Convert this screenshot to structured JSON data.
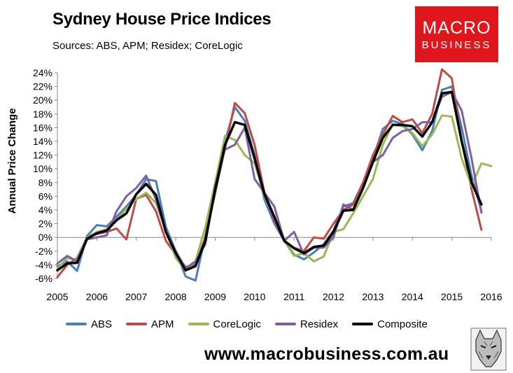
{
  "header": {
    "title": "Sydney House Price Indices",
    "subtitle": "Sources: ABS, APM; Residex; CoreLogic"
  },
  "logo": {
    "line1": "MACRO",
    "line2": "BUSINESS",
    "color": "#e0161d"
  },
  "footer": {
    "url": "www.macrobusiness.com.au"
  },
  "chart_data": {
    "type": "line",
    "title": "Sydney House Price Indices",
    "subtitle": "Sources: ABS, APM; Residex; CoreLogic",
    "xlabel": "",
    "ylabel": "Annual Price Change",
    "xlim": [
      2005,
      2016
    ],
    "ylim": [
      -6,
      24
    ],
    "x_ticks": [
      "2005",
      "2006",
      "2007",
      "2008",
      "2009",
      "2010",
      "2011",
      "2012",
      "2013",
      "2014",
      "2015",
      "2016"
    ],
    "y_ticks": [
      "-6%",
      "-4%",
      "-2%",
      "0%",
      "2%",
      "4%",
      "6%",
      "8%",
      "10%",
      "12%",
      "14%",
      "16%",
      "18%",
      "20%",
      "22%",
      "24%"
    ],
    "grid": false,
    "legend_position": "bottom",
    "series": [
      {
        "name": "ABS",
        "color": "#4a7ebb",
        "x": [
          2005.0,
          2005.25,
          2005.5,
          2005.75,
          2006.0,
          2006.25,
          2006.5,
          2006.75,
          2007.0,
          2007.25,
          2007.5,
          2007.75,
          2008.0,
          2008.25,
          2008.5,
          2008.75,
          2009.0,
          2009.25,
          2009.5,
          2009.75,
          2010.0,
          2010.25,
          2010.5,
          2010.75,
          2011.0,
          2011.25,
          2011.5,
          2011.75,
          2012.0,
          2012.25,
          2012.5,
          2012.75,
          2013.0,
          2013.25,
          2013.5,
          2013.75,
          2014.0,
          2014.25,
          2014.5,
          2014.75,
          2015.0,
          2015.25,
          2015.5,
          2015.75
        ],
        "y": [
          -4.2,
          -3.5,
          -4.9,
          0.2,
          1.8,
          1.6,
          3.0,
          4.5,
          6.2,
          8.5,
          8.2,
          1.5,
          -2.0,
          -5.7,
          -6.3,
          0.2,
          7.0,
          14.0,
          19.0,
          17.0,
          12.0,
          5.5,
          2.0,
          -0.5,
          -2.5,
          -3.2,
          -2.2,
          -1.0,
          1.0,
          4.5,
          5.0,
          8.0,
          11.5,
          15.8,
          17.0,
          16.5,
          15.0,
          12.7,
          15.5,
          21.5,
          22.0,
          16.0,
          9.0,
          3.8
        ]
      },
      {
        "name": "APM",
        "color": "#be4b48",
        "x": [
          2005.0,
          2005.25,
          2005.5,
          2005.75,
          2006.0,
          2006.25,
          2006.5,
          2006.75,
          2007.0,
          2007.25,
          2007.5,
          2007.75,
          2008.0,
          2008.25,
          2008.5,
          2008.75,
          2009.0,
          2009.25,
          2009.5,
          2009.75,
          2010.0,
          2010.25,
          2010.5,
          2010.75,
          2011.0,
          2011.25,
          2011.5,
          2011.75,
          2012.0,
          2012.25,
          2012.5,
          2012.75,
          2013.0,
          2013.25,
          2013.5,
          2013.75,
          2014.0,
          2014.25,
          2014.5,
          2014.75,
          2015.0,
          2015.25,
          2015.5,
          2015.75
        ],
        "y": [
          -5.8,
          -4.0,
          -3.0,
          0.0,
          0.5,
          0.8,
          1.3,
          -0.3,
          5.6,
          6.2,
          3.8,
          -0.5,
          -2.5,
          -4.3,
          -4.0,
          0.0,
          6.5,
          13.0,
          19.6,
          18.1,
          13.5,
          6.5,
          2.5,
          -0.5,
          -1.5,
          -2.0,
          0.0,
          -0.2,
          2.0,
          4.0,
          4.8,
          8.0,
          12.0,
          15.0,
          17.7,
          16.8,
          17.2,
          15.2,
          18.0,
          24.5,
          23.2,
          14.0,
          7.0,
          1.1
        ]
      },
      {
        "name": "CoreLogic",
        "color": "#98b954",
        "x": [
          2005.0,
          2005.25,
          2005.5,
          2005.75,
          2006.0,
          2006.25,
          2006.5,
          2006.75,
          2007.0,
          2007.25,
          2007.5,
          2007.75,
          2008.0,
          2008.25,
          2008.5,
          2008.75,
          2009.0,
          2009.25,
          2009.5,
          2009.75,
          2010.0,
          2010.25,
          2010.5,
          2010.75,
          2011.0,
          2011.25,
          2011.5,
          2011.75,
          2012.0,
          2012.25,
          2012.5,
          2012.75,
          2013.0,
          2013.25,
          2013.5,
          2013.75,
          2014.0,
          2014.25,
          2014.5,
          2014.75,
          2015.0,
          2015.25,
          2015.5,
          2015.75,
          2016.0
        ],
        "y": [
          -4.5,
          -3.0,
          -3.3,
          0.0,
          0.8,
          1.2,
          2.5,
          4.2,
          5.6,
          6.5,
          5.0,
          1.0,
          -3.0,
          -4.8,
          -3.5,
          1.5,
          8.0,
          14.8,
          14.2,
          12.0,
          10.8,
          6.0,
          3.0,
          -0.5,
          -2.7,
          -2.3,
          -3.5,
          -2.8,
          0.8,
          1.2,
          3.5,
          6.0,
          8.5,
          13.5,
          16.5,
          16.2,
          15.2,
          13.3,
          15.0,
          17.8,
          17.6,
          11.5,
          7.5,
          10.8,
          10.4
        ]
      },
      {
        "name": "Residex",
        "color": "#7d60a0",
        "x": [
          2005.0,
          2005.25,
          2005.5,
          2005.75,
          2006.0,
          2006.25,
          2006.5,
          2006.75,
          2007.0,
          2007.25,
          2007.5,
          2007.75,
          2008.0,
          2008.25,
          2008.5,
          2008.75,
          2009.0,
          2009.25,
          2009.5,
          2009.75,
          2010.0,
          2010.25,
          2010.5,
          2010.75,
          2011.0,
          2011.25,
          2011.5,
          2011.75,
          2012.0,
          2012.25,
          2012.5,
          2012.75,
          2013.0,
          2013.25,
          2013.5,
          2013.75,
          2014.0,
          2014.25,
          2014.5,
          2014.75,
          2015.0,
          2015.25,
          2015.5,
          2015.75
        ],
        "y": [
          -3.8,
          -2.7,
          -3.5,
          -0.3,
          0.0,
          0.3,
          3.8,
          6.0,
          7.2,
          9.0,
          5.5,
          0.8,
          -2.0,
          -4.5,
          -3.5,
          -1.0,
          7.5,
          12.8,
          13.5,
          16.0,
          8.5,
          6.5,
          4.5,
          -0.5,
          0.8,
          -2.5,
          -1.5,
          -1.5,
          0.0,
          4.8,
          4.0,
          7.5,
          11.0,
          12.0,
          14.5,
          15.5,
          15.8,
          16.8,
          16.8,
          20.5,
          21.2,
          18.5,
          11.5,
          3.6
        ]
      },
      {
        "name": "Composite",
        "color": "#000000",
        "x": [
          2005.0,
          2005.25,
          2005.5,
          2005.75,
          2006.0,
          2006.25,
          2006.5,
          2006.75,
          2007.0,
          2007.25,
          2007.5,
          2007.75,
          2008.0,
          2008.25,
          2008.5,
          2008.75,
          2009.0,
          2009.25,
          2009.5,
          2009.75,
          2010.0,
          2010.25,
          2010.5,
          2010.75,
          2011.0,
          2011.25,
          2011.5,
          2011.75,
          2012.0,
          2012.25,
          2012.5,
          2012.75,
          2013.0,
          2013.25,
          2013.5,
          2013.75,
          2014.0,
          2014.25,
          2014.5,
          2014.75,
          2015.0,
          2015.25,
          2015.5,
          2015.75
        ],
        "y": [
          -4.8,
          -3.8,
          -3.7,
          -0.2,
          0.6,
          1.0,
          2.5,
          3.5,
          6.3,
          7.8,
          6.2,
          0.8,
          -2.3,
          -4.8,
          -4.2,
          -0.5,
          7.0,
          13.5,
          16.8,
          16.4,
          11.5,
          6.3,
          3.0,
          -0.5,
          -1.6,
          -2.3,
          -1.4,
          -1.2,
          0.8,
          3.9,
          4.0,
          7.2,
          11.0,
          14.5,
          16.4,
          16.4,
          16.2,
          14.7,
          16.8,
          21.0,
          21.2,
          14.0,
          8.0,
          4.8
        ]
      }
    ]
  }
}
